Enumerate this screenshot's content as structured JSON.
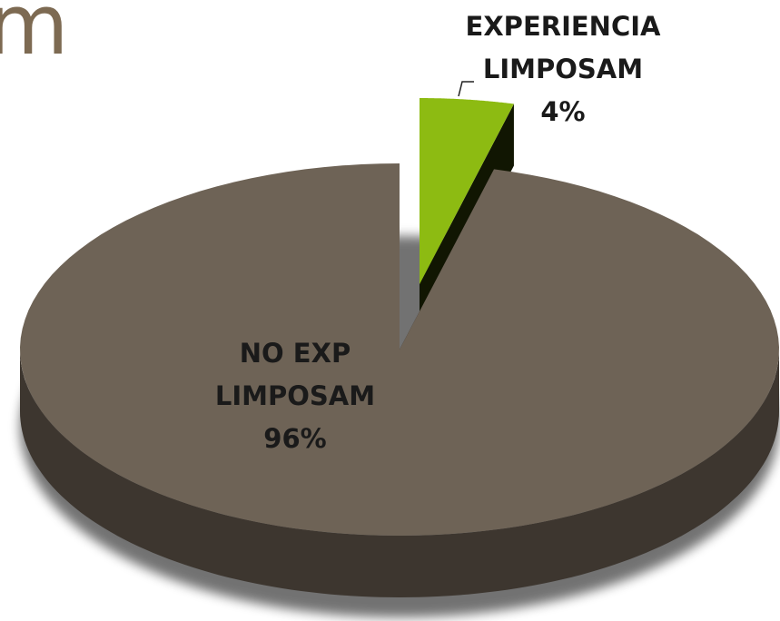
{
  "chart_data": {
    "type": "pie",
    "title": "m",
    "categories": [
      "EXPERIENCIA LIMPOSAM",
      "NO EXP LIMPOSAM"
    ],
    "values": [
      4,
      96
    ],
    "value_labels": [
      "4%",
      "96%"
    ],
    "colors": [
      "#8dbb12",
      "#6e6356"
    ]
  }
}
